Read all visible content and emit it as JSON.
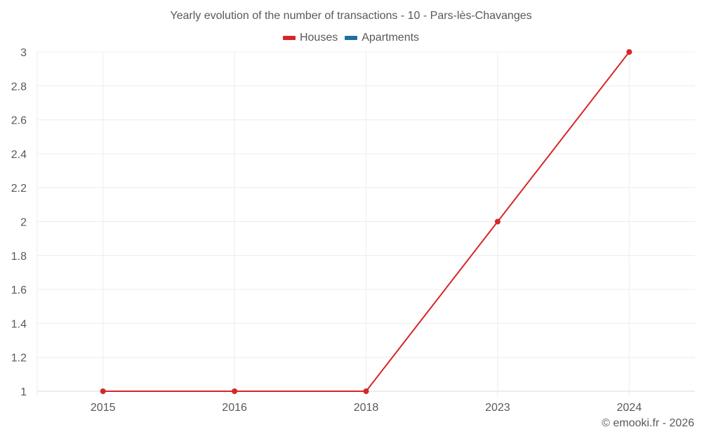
{
  "chart": {
    "title": "Yearly evolution of the number of transactions - 10 - Pars-lès-Chavanges",
    "credit": "© emooki.fr - 2026"
  },
  "legend": [
    {
      "label": "Houses",
      "color": "#d62728"
    },
    {
      "label": "Apartments",
      "color": "#1f6fa5"
    }
  ],
  "chart_data": {
    "type": "line",
    "title": "Yearly evolution of the number of transactions - 10 - Pars-lès-Chavanges",
    "xlabel": "",
    "ylabel": "",
    "categories": [
      "2015",
      "2016",
      "2018",
      "2023",
      "2024"
    ],
    "series": [
      {
        "name": "Houses",
        "color": "#d62728",
        "values": [
          1,
          1,
          1,
          2,
          3
        ]
      },
      {
        "name": "Apartments",
        "color": "#1f6fa5",
        "values": [
          null,
          null,
          null,
          null,
          null
        ]
      }
    ],
    "ylim": [
      1,
      3
    ],
    "yticks": [
      "1",
      "1.2",
      "1.4",
      "1.6",
      "1.8",
      "2",
      "2.2",
      "2.4",
      "2.6",
      "2.8",
      "3"
    ],
    "grid": true,
    "legend_position": "top"
  }
}
